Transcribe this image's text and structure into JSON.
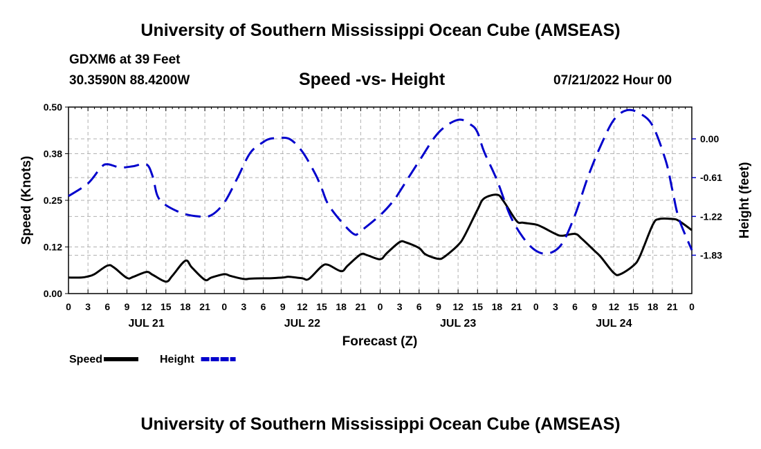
{
  "header": {
    "title": "University of Southern Mississippi Ocean Cube (AMSEAS)",
    "station": "GDXM6 at 39 Feet",
    "coordinates": "30.3590N  88.4200W",
    "subtitle": "Speed -vs- Height",
    "datetime": "07/21/2022 Hour 00"
  },
  "footer": {
    "title": "University of Southern Mississippi Ocean Cube (AMSEAS)"
  },
  "chart_data": {
    "type": "line",
    "xlabel": "Forecast (Z)",
    "ylabel": "Speed (Knots)",
    "y2label": "Height (feet)",
    "xlim": [
      0,
      96
    ],
    "ylim": [
      0,
      0.5
    ],
    "y2lim": [
      -2.4333,
      0.5
    ],
    "grid": true,
    "x_tick_labels": [
      "0",
      "3",
      "6",
      "9",
      "12",
      "15",
      "18",
      "21",
      "0",
      "3",
      "6",
      "9",
      "12",
      "15",
      "18",
      "21",
      "0",
      "3",
      "6",
      "9",
      "12",
      "15",
      "18",
      "21",
      "0",
      "3",
      "6",
      "9",
      "12",
      "15",
      "18",
      "21",
      "0"
    ],
    "y_tick_labels": [
      "0.00",
      "0.12",
      "0.25",
      "0.38",
      "0.50"
    ],
    "y_tick_values": [
      0,
      0.125,
      0.25,
      0.375,
      0.5
    ],
    "y2_tick_labels": [
      "0.00",
      "-0.61",
      "-1.22",
      "-1.83"
    ],
    "y2_tick_values": [
      0,
      -0.61,
      -1.22,
      -1.83
    ],
    "day_labels": [
      {
        "label": "JUL 21",
        "x": 12
      },
      {
        "label": "JUL 22",
        "x": 36
      },
      {
        "label": "JUL 23",
        "x": 60
      },
      {
        "label": "JUL 24",
        "x": 84
      }
    ],
    "legend": [
      {
        "name": "Speed",
        "color": "#000000",
        "dash": "solid"
      },
      {
        "name": "Height",
        "color": "#0000cc",
        "dash": "dashed"
      }
    ],
    "series": [
      {
        "name": "Speed",
        "axis": "left",
        "color": "#000000",
        "x": [
          0,
          2,
          3,
          4,
          6,
          7,
          9,
          10,
          12,
          13,
          15,
          16,
          18,
          19,
          21,
          22,
          24,
          25,
          27,
          28,
          30,
          31,
          33,
          34,
          36,
          37,
          39,
          40,
          42,
          43,
          45,
          46,
          48,
          49,
          51,
          52,
          54,
          55,
          57,
          58,
          60,
          61,
          63,
          64,
          66,
          67,
          69,
          70,
          72,
          73,
          75,
          76,
          78,
          79,
          81,
          82,
          84,
          85,
          87,
          88,
          90,
          91,
          93,
          94,
          96
        ],
        "y": [
          0.043,
          0.043,
          0.046,
          0.052,
          0.075,
          0.07,
          0.042,
          0.045,
          0.058,
          0.05,
          0.032,
          0.048,
          0.088,
          0.07,
          0.037,
          0.043,
          0.052,
          0.047,
          0.039,
          0.04,
          0.041,
          0.041,
          0.043,
          0.045,
          0.041,
          0.039,
          0.073,
          0.077,
          0.06,
          0.075,
          0.105,
          0.103,
          0.092,
          0.108,
          0.138,
          0.137,
          0.122,
          0.105,
          0.093,
          0.1,
          0.13,
          0.155,
          0.225,
          0.255,
          0.265,
          0.248,
          0.195,
          0.19,
          0.185,
          0.178,
          0.16,
          0.155,
          0.16,
          0.148,
          0.115,
          0.098,
          0.055,
          0.052,
          0.075,
          0.1,
          0.185,
          0.2,
          0.2,
          0.195,
          0.17
        ]
      },
      {
        "name": "Height",
        "axis": "right",
        "color": "#0000cc",
        "x": [
          0,
          3,
          5,
          6,
          8,
          10,
          12,
          13,
          14,
          17,
          20,
          22,
          24,
          26,
          28,
          30,
          31,
          32,
          34,
          36,
          38,
          39,
          40,
          42,
          44,
          45,
          48,
          50,
          51,
          54,
          57,
          60,
          62,
          63,
          64,
          66,
          68,
          70,
          72,
          74,
          76,
          78,
          80,
          82,
          84,
          86,
          88,
          90,
          92,
          93,
          94,
          96
        ],
        "y": [
          -0.9,
          -0.7,
          -0.45,
          -0.4,
          -0.45,
          -0.43,
          -0.4,
          -0.6,
          -0.95,
          -1.15,
          -1.22,
          -1.2,
          -1.0,
          -0.62,
          -0.22,
          -0.05,
          0.0,
          0.01,
          0.0,
          -0.2,
          -0.55,
          -0.78,
          -1.03,
          -1.3,
          -1.5,
          -1.45,
          -1.2,
          -0.98,
          -0.83,
          -0.35,
          0.1,
          0.3,
          0.22,
          0.1,
          -0.2,
          -0.65,
          -1.2,
          -1.55,
          -1.76,
          -1.8,
          -1.65,
          -1.2,
          -0.6,
          -0.1,
          0.3,
          0.45,
          0.4,
          0.2,
          -0.35,
          -0.8,
          -1.25,
          -1.75
        ]
      }
    ]
  }
}
